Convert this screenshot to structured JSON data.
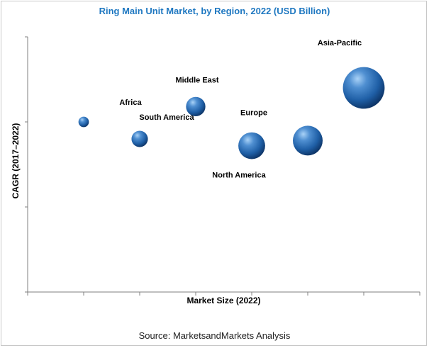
{
  "title": "Ring Main Unit Market, by Region, 2022 (USD Billion)",
  "source": "Source: MarketsandMarkets Analysis",
  "colors": {
    "title": "#1f78c1",
    "bubble": "#2a6db3",
    "axis": "#7f7f7f"
  },
  "chart_data": {
    "type": "scatter",
    "title": "Ring Main Unit Market, by Region, 2022 (USD Billion)",
    "xlabel": "Market Size (2022)",
    "ylabel": "CAGR (2017–2022)",
    "xlim": [
      0,
      7
    ],
    "ylim": [
      0,
      3
    ],
    "grid": false,
    "legend": "none",
    "series": [
      {
        "label": "Africa",
        "x": 1,
        "y": 2.0,
        "size": 0.35
      },
      {
        "label": "South America",
        "x": 2,
        "y": 1.8,
        "size": 0.55
      },
      {
        "label": "Middle East",
        "x": 3,
        "y": 2.18,
        "size": 0.65
      },
      {
        "label": "North America",
        "x": 4,
        "y": 1.72,
        "size": 0.9
      },
      {
        "label": "Europe",
        "x": 5,
        "y": 1.78,
        "size": 1.0
      },
      {
        "label": "Asia-Pacific",
        "x": 6,
        "y": 2.4,
        "size": 1.4
      }
    ]
  }
}
